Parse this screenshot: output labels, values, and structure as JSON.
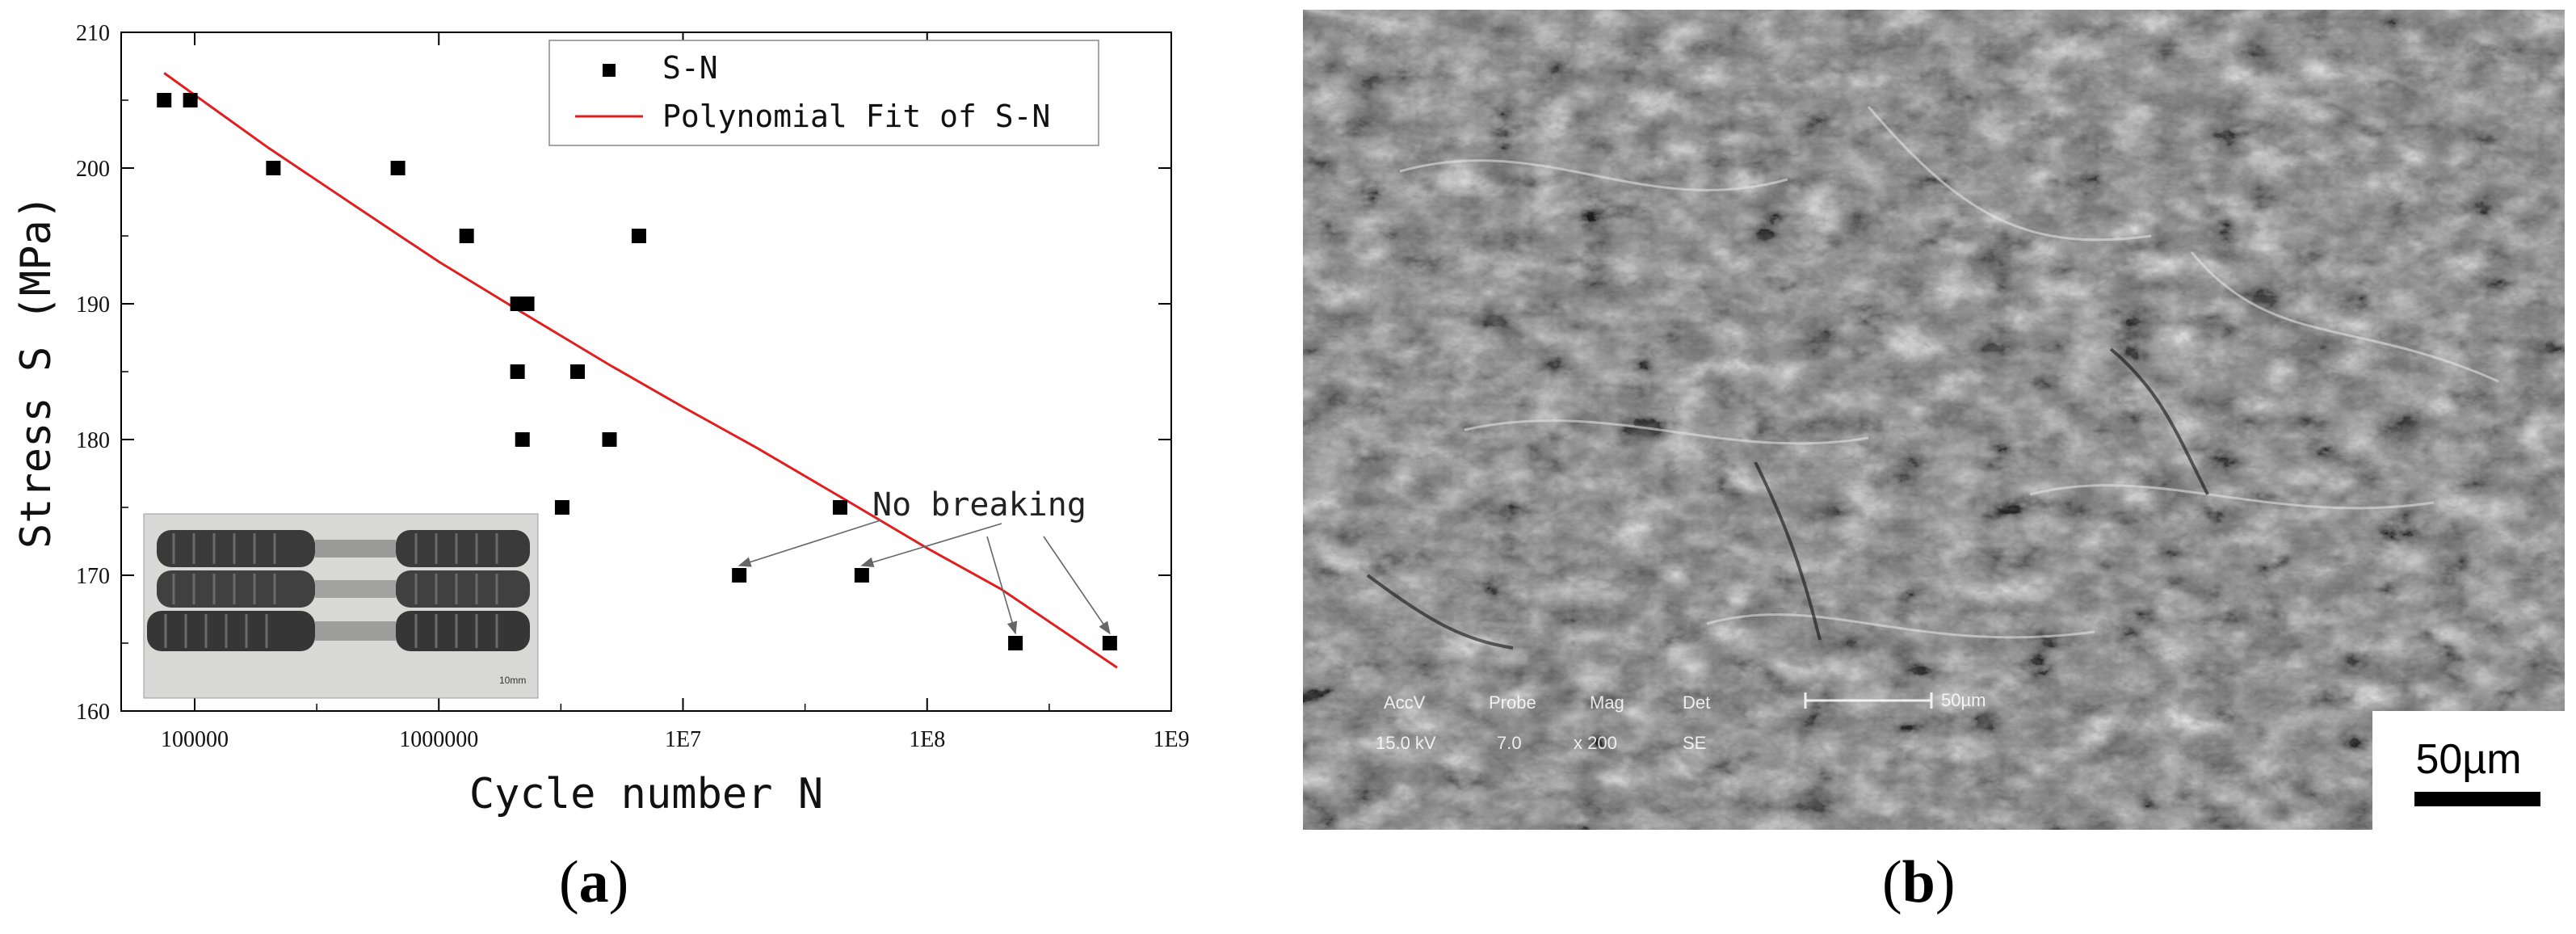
{
  "panel_labels": {
    "a": "a",
    "b": "b"
  },
  "chart_data": {
    "type": "scatter",
    "xlabel": "Cycle number N",
    "ylabel": "Stress S (MPa)",
    "xscale": "log",
    "xlim": [
      50000,
      1000000000
    ],
    "ylim": [
      160,
      210
    ],
    "xticks": [
      "100000",
      "1000000",
      "1E7",
      "1E8",
      "1E9"
    ],
    "yticks": [
      "160",
      "170",
      "180",
      "190",
      "200",
      "210"
    ],
    "series": [
      {
        "name": "S-N",
        "marker": "square",
        "color": "#000000",
        "points": [
          {
            "x": 75000,
            "y": 205
          },
          {
            "x": 96000,
            "y": 205
          },
          {
            "x": 210000,
            "y": 200
          },
          {
            "x": 680000,
            "y": 200
          },
          {
            "x": 1300000,
            "y": 195
          },
          {
            "x": 6600000,
            "y": 195
          },
          {
            "x": 2100000,
            "y": 190
          },
          {
            "x": 2300000,
            "y": 190
          },
          {
            "x": 2100000,
            "y": 185
          },
          {
            "x": 3700000,
            "y": 185
          },
          {
            "x": 2200000,
            "y": 180
          },
          {
            "x": 5000000,
            "y": 180
          },
          {
            "x": 3200000,
            "y": 175
          },
          {
            "x": 44000000,
            "y": 175
          },
          {
            "x": 17000000,
            "y": 170
          },
          {
            "x": 54000000,
            "y": 170
          },
          {
            "x": 230000000,
            "y": 165
          },
          {
            "x": 560000000,
            "y": 165
          }
        ]
      },
      {
        "name": "Polynomial Fit of S-N",
        "type": "line",
        "color": "#e02020",
        "points": [
          {
            "x": 75000,
            "y": 207
          },
          {
            "x": 200000,
            "y": 201.5
          },
          {
            "x": 500000,
            "y": 196.7
          },
          {
            "x": 1000000,
            "y": 193.1
          },
          {
            "x": 2000000,
            "y": 189.8
          },
          {
            "x": 5000000,
            "y": 185.5
          },
          {
            "x": 10000000,
            "y": 182.4
          },
          {
            "x": 20000000,
            "y": 179.4
          },
          {
            "x": 50000000,
            "y": 175.2
          },
          {
            "x": 100000000,
            "y": 172.0
          },
          {
            "x": 200000000,
            "y": 169.0
          },
          {
            "x": 600000000,
            "y": 163.2
          }
        ]
      }
    ],
    "legend": {
      "placement": "top-right",
      "entries": [
        "S-N",
        "Polynomial Fit of S-N"
      ]
    },
    "annotations": [
      {
        "text": "No breaking",
        "targets": [
          {
            "x": 17000000,
            "y": 170
          },
          {
            "x": 54000000,
            "y": 170
          },
          {
            "x": 230000000,
            "y": 165
          },
          {
            "x": 560000000,
            "y": 165
          }
        ]
      }
    ],
    "inset_photo": {
      "scale_text": "10mm"
    }
  },
  "sem_image": {
    "info_labels": [
      "AccV",
      "Probe",
      "Mag",
      "Det"
    ],
    "info_values": [
      "15.0 kV",
      "7.0",
      "x 200",
      "SE"
    ],
    "embedded_scale_text": "50µm",
    "scale_bar_text": "50µm"
  }
}
